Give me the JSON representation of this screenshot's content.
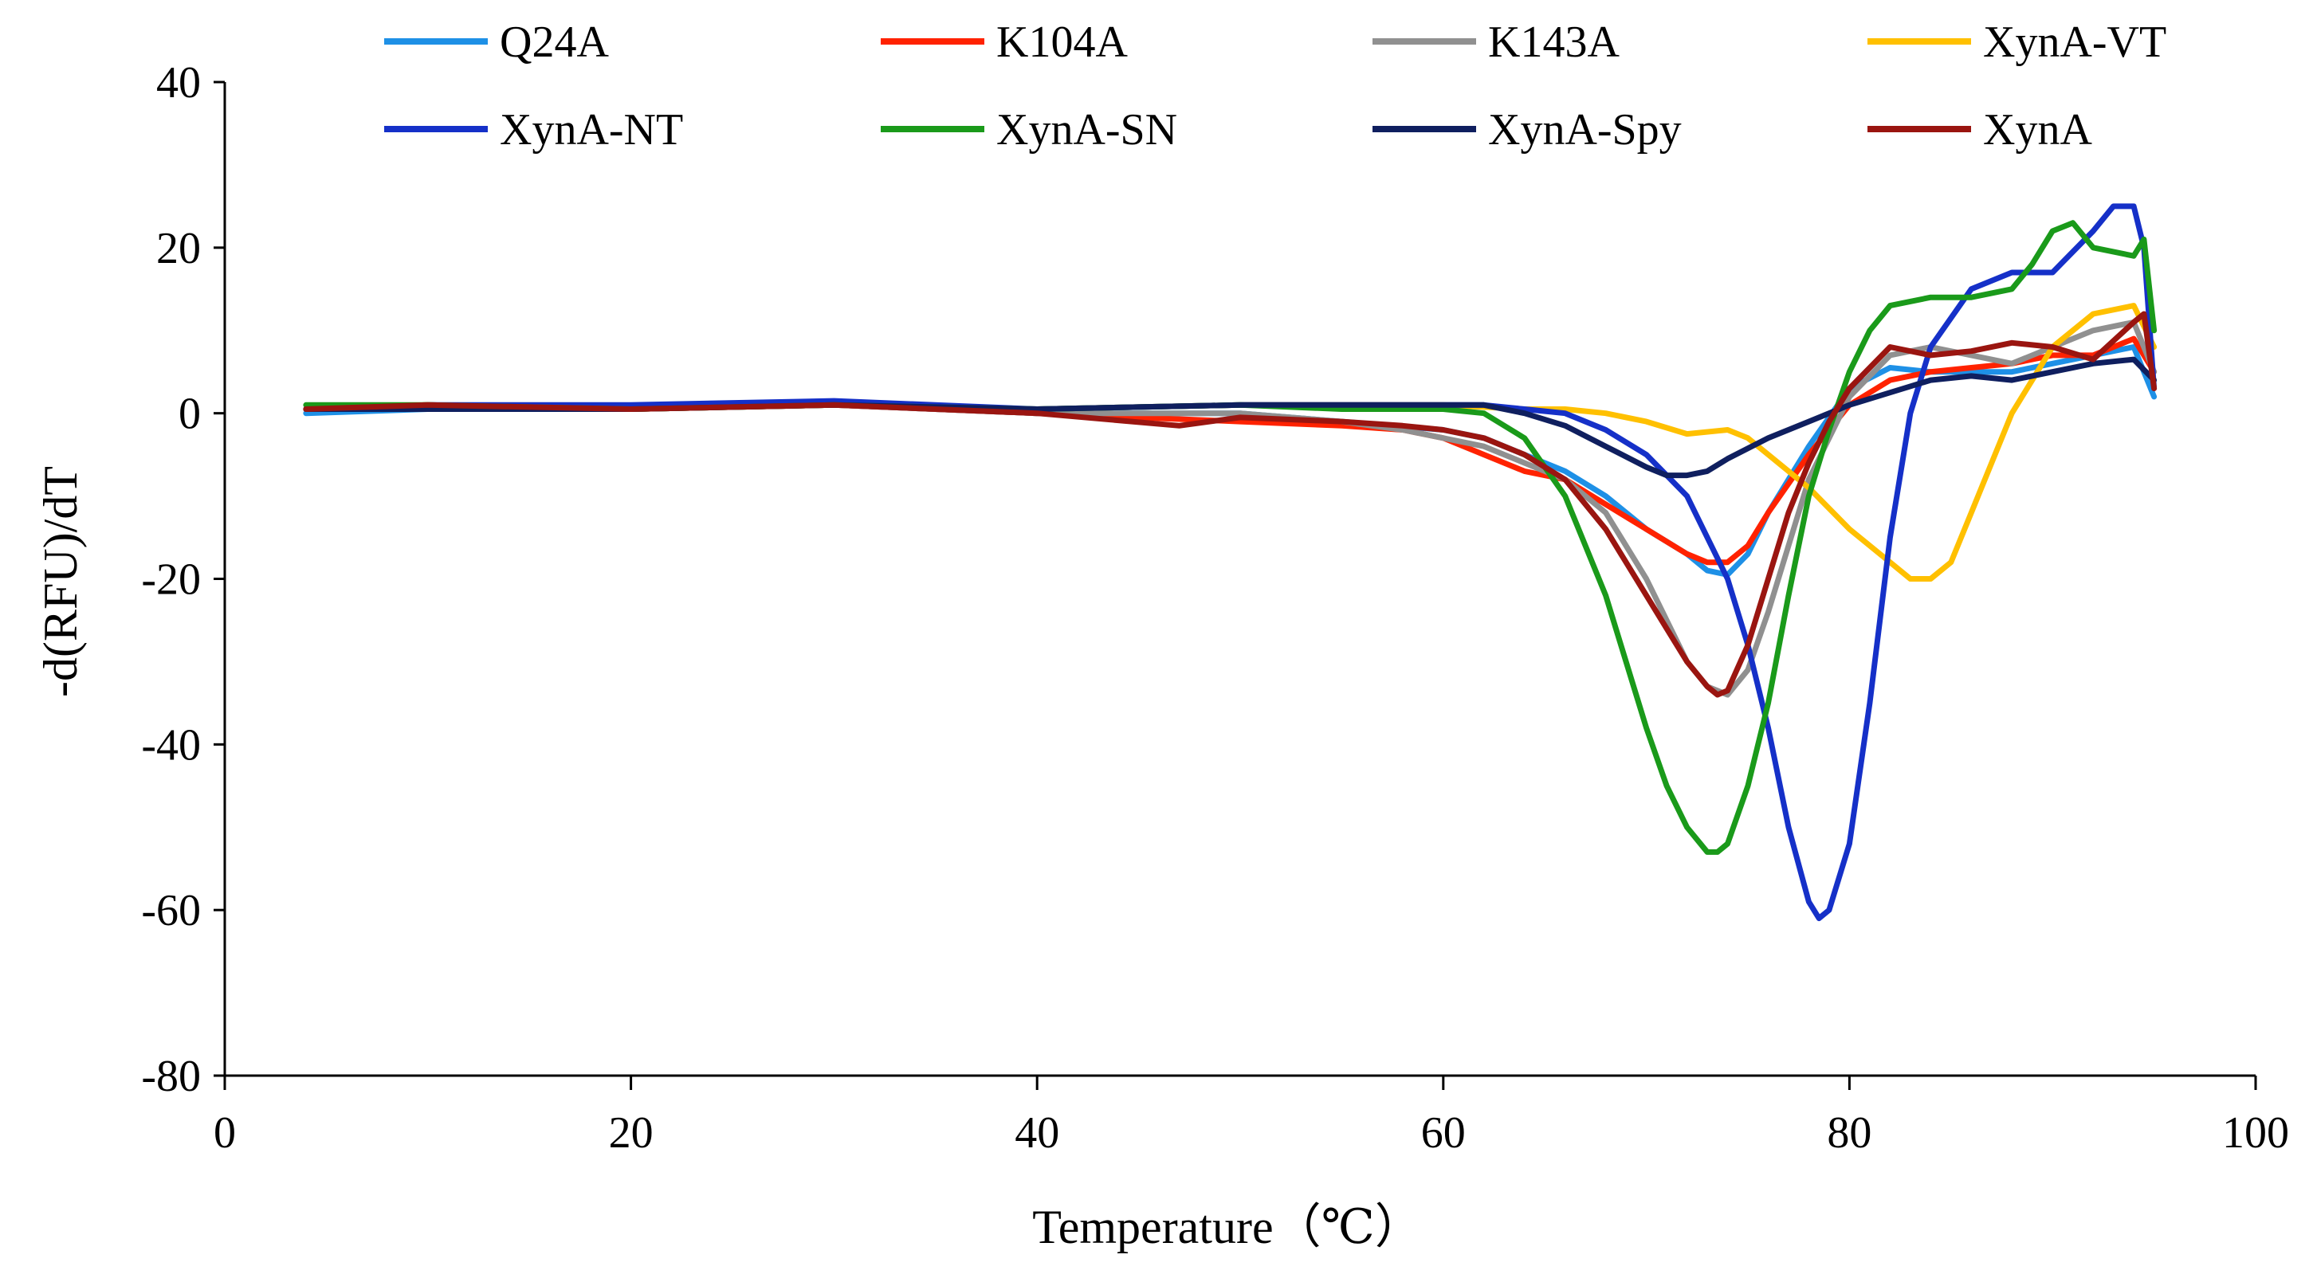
{
  "chart_data": {
    "type": "line",
    "title": "",
    "xlabel": "Temperature（℃）",
    "ylabel": "-d(RFU)/dT",
    "xlim": [
      0,
      100
    ],
    "ylim": [
      -80,
      40
    ],
    "xticks": [
      0,
      20,
      40,
      60,
      80,
      100
    ],
    "yticks": [
      40,
      20,
      0,
      -20,
      -40,
      -60,
      -80
    ],
    "grid": false,
    "legend_position": "top",
    "series": [
      {
        "name": "Q24A",
        "color": "#1E90E6",
        "x": [
          4,
          10,
          20,
          30,
          40,
          50,
          55,
          60,
          62,
          64,
          66,
          68,
          70,
          72,
          73,
          74,
          75,
          76,
          78,
          80,
          82,
          84,
          86,
          88,
          90,
          92,
          94,
          95
        ],
        "y": [
          0,
          0.5,
          0.5,
          1,
          0,
          0,
          -1,
          -2,
          -3,
          -5,
          -7,
          -10,
          -14,
          -17,
          -19,
          -19.5,
          -17,
          -12,
          -4,
          3,
          5.5,
          5,
          5,
          5,
          6,
          7,
          8,
          2
        ]
      },
      {
        "name": "K104A",
        "color": "#FF2200",
        "x": [
          4,
          10,
          20,
          30,
          40,
          50,
          55,
          58,
          60,
          62,
          64,
          66,
          68,
          70,
          72,
          73,
          74,
          75,
          76,
          78,
          80,
          82,
          84,
          86,
          88,
          90,
          92,
          94,
          95
        ],
        "y": [
          0.5,
          1,
          0.5,
          1,
          0,
          -1,
          -1.5,
          -2,
          -3,
          -5,
          -7,
          -8,
          -11,
          -14,
          -17,
          -18,
          -18,
          -16,
          -12,
          -5,
          1,
          4,
          5,
          5.5,
          6,
          7,
          7,
          9,
          5
        ]
      },
      {
        "name": "K143A",
        "color": "#909090",
        "x": [
          4,
          10,
          20,
          30,
          40,
          50,
          55,
          58,
          60,
          62,
          64,
          66,
          68,
          70,
          71,
          72,
          73,
          74,
          75,
          76,
          78,
          80,
          82,
          84,
          86,
          88,
          90,
          92,
          94,
          95
        ],
        "y": [
          0.5,
          1,
          0.5,
          1,
          0,
          0,
          -1,
          -2,
          -3,
          -4,
          -6,
          -8,
          -12,
          -20,
          -25,
          -30,
          -33,
          -34,
          -31,
          -24,
          -8,
          2,
          7,
          8,
          7,
          6,
          8,
          10,
          11,
          5
        ]
      },
      {
        "name": "XynA-VT",
        "color": "#FFC000",
        "x": [
          4,
          10,
          20,
          30,
          40,
          50,
          60,
          64,
          66,
          68,
          70,
          72,
          74,
          75,
          76,
          78,
          80,
          82,
          83,
          84,
          85,
          86,
          88,
          90,
          92,
          94,
          95
        ],
        "y": [
          0.5,
          1,
          0.5,
          1,
          0.5,
          1,
          1,
          0.5,
          0.5,
          0,
          -1,
          -2.5,
          -2,
          -3,
          -5,
          -9,
          -14,
          -18,
          -20,
          -20,
          -18,
          -12,
          0,
          8,
          12,
          13,
          8
        ]
      },
      {
        "name": "XynA-NT",
        "color": "#1530C8",
        "x": [
          4,
          10,
          20,
          30,
          40,
          50,
          60,
          62,
          64,
          66,
          68,
          70,
          72,
          74,
          75,
          76,
          77,
          78,
          78.5,
          79,
          80,
          81,
          82,
          83,
          84,
          86,
          88,
          90,
          92,
          93,
          94,
          94.5,
          95
        ],
        "y": [
          0.5,
          1,
          1,
          1.5,
          0.5,
          1,
          1,
          1,
          0.5,
          0,
          -2,
          -5,
          -10,
          -20,
          -28,
          -38,
          -50,
          -59,
          -61,
          -60,
          -52,
          -35,
          -15,
          0,
          8,
          15,
          17,
          17,
          22,
          25,
          25,
          20,
          3
        ]
      },
      {
        "name": "XynA-SN",
        "color": "#1A9A1A",
        "x": [
          4,
          10,
          20,
          30,
          40,
          50,
          55,
          60,
          62,
          64,
          66,
          68,
          70,
          71,
          72,
          73,
          73.5,
          74,
          75,
          76,
          77,
          78,
          79,
          80,
          81,
          82,
          84,
          86,
          88,
          89,
          90,
          91,
          92,
          94,
          94.5,
          95
        ],
        "y": [
          1,
          1,
          0.5,
          1,
          0.5,
          1,
          0.5,
          0.5,
          0,
          -3,
          -10,
          -22,
          -38,
          -45,
          -50,
          -53,
          -53,
          -52,
          -45,
          -35,
          -22,
          -10,
          -2,
          5,
          10,
          13,
          14,
          14,
          15,
          18,
          22,
          23,
          20,
          19,
          21,
          10
        ]
      },
      {
        "name": "XynA-Spy",
        "color": "#0F1F5F",
        "x": [
          4,
          10,
          20,
          30,
          40,
          50,
          55,
          60,
          62,
          64,
          66,
          68,
          70,
          71,
          72,
          73,
          74,
          76,
          78,
          80,
          82,
          84,
          86,
          88,
          90,
          92,
          94,
          95
        ],
        "y": [
          0.5,
          0.5,
          0.5,
          1,
          0.5,
          1,
          1,
          1,
          1,
          0,
          -1.5,
          -4,
          -6.5,
          -7.5,
          -7.5,
          -7,
          -5.5,
          -3,
          -1,
          1,
          2.5,
          4,
          4.5,
          4,
          5,
          6,
          6.5,
          4
        ]
      },
      {
        "name": "XynA",
        "color": "#9A1510",
        "x": [
          4,
          10,
          20,
          30,
          40,
          47,
          50,
          55,
          58,
          60,
          62,
          64,
          66,
          68,
          70,
          71,
          72,
          73,
          73.5,
          74,
          75,
          76,
          77,
          78,
          79,
          80,
          82,
          84,
          86,
          88,
          90,
          92,
          94,
          94.5,
          95
        ],
        "y": [
          0.5,
          1,
          0.5,
          1,
          0,
          -1.5,
          -0.5,
          -1,
          -1.5,
          -2,
          -3,
          -5,
          -8,
          -14,
          -22,
          -26,
          -30,
          -33,
          -34,
          -33.5,
          -28,
          -20,
          -12,
          -6,
          -1,
          3,
          8,
          7,
          7.5,
          8.5,
          8,
          6.5,
          11,
          12,
          3
        ]
      }
    ]
  }
}
